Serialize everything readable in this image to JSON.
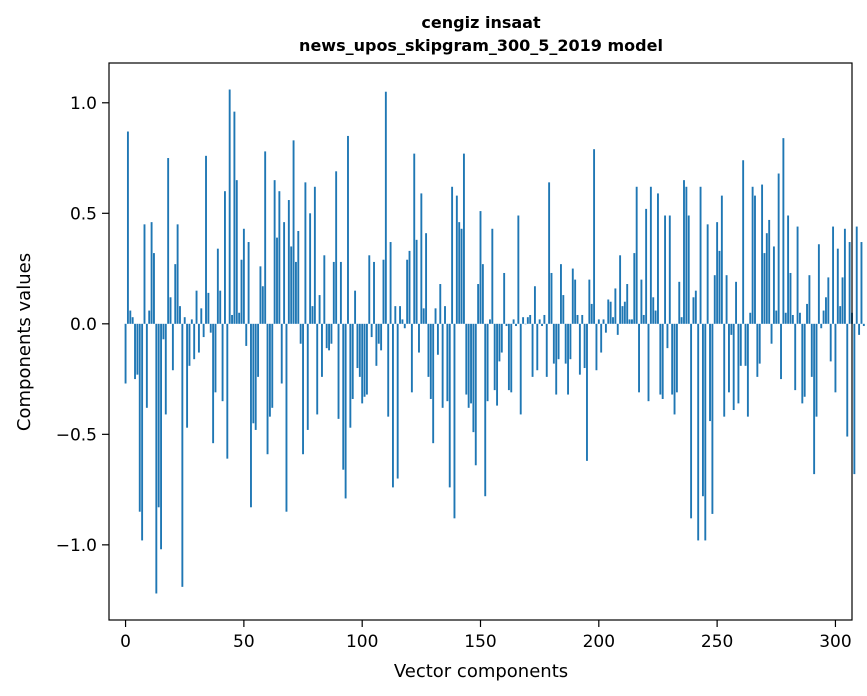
{
  "chart_data": {
    "type": "bar",
    "title": "cengiz insaat",
    "subtitle": "news_upos_skipgram_300_5_2019 model",
    "xlabel": "Vector components",
    "ylabel": "Components values",
    "xlim": [
      -7,
      307
    ],
    "ylim": [
      -1.34,
      1.18
    ],
    "xticks": [
      0,
      50,
      100,
      150,
      200,
      250,
      300
    ],
    "xtick_labels": [
      "0",
      "50",
      "100",
      "150",
      "200",
      "250",
      "300"
    ],
    "yticks": [
      -1.0,
      -0.5,
      0.0,
      0.5,
      1.0
    ],
    "ytick_labels": [
      "−1.0",
      "−0.5",
      "0.0",
      "0.5",
      "1.0"
    ],
    "grid": false,
    "bar_color": "#1f77b4",
    "values": [
      -0.27,
      0.87,
      0.06,
      0.03,
      -0.25,
      -0.23,
      -0.85,
      -0.98,
      0.45,
      -0.38,
      0.06,
      0.46,
      0.32,
      -1.22,
      -0.83,
      -1.02,
      -0.07,
      -0.41,
      0.75,
      0.12,
      -0.21,
      0.27,
      0.45,
      0.08,
      -1.19,
      0.03,
      -0.47,
      -0.19,
      0.02,
      -0.16,
      0.15,
      -0.13,
      0.07,
      -0.06,
      0.76,
      0.14,
      -0.04,
      -0.54,
      -0.31,
      0.34,
      0.15,
      -0.35,
      0.6,
      -0.61,
      1.06,
      0.04,
      0.96,
      0.65,
      0.05,
      0.29,
      0.43,
      -0.1,
      0.37,
      -0.83,
      -0.45,
      -0.48,
      -0.24,
      0.26,
      0.17,
      0.78,
      -0.59,
      -0.42,
      -0.38,
      0.65,
      0.39,
      0.6,
      -0.27,
      0.46,
      -0.85,
      0.56,
      0.35,
      0.83,
      0.28,
      0.42,
      -0.09,
      -0.59,
      0.64,
      -0.48,
      0.5,
      0.08,
      0.62,
      -0.41,
      0.13,
      -0.24,
      0.31,
      -0.11,
      -0.12,
      -0.09,
      0.28,
      0.69,
      -0.43,
      0.28,
      -0.66,
      -0.79,
      0.85,
      -0.47,
      -0.34,
      0.15,
      -0.2,
      -0.24,
      -0.36,
      -0.33,
      -0.32,
      0.31,
      -0.06,
      0.28,
      -0.19,
      -0.09,
      -0.12,
      0.29,
      1.05,
      -0.42,
      0.37,
      -0.74,
      0.08,
      -0.7,
      0.08,
      0.02,
      -0.02,
      0.29,
      0.33,
      -0.31,
      0.77,
      0.38,
      -0.13,
      0.59,
      0.07,
      0.41,
      -0.24,
      -0.34,
      -0.54,
      0.07,
      -0.14,
      0.18,
      -0.38,
      0.08,
      -0.35,
      -0.74,
      0.62,
      -0.88,
      0.58,
      0.46,
      0.43,
      0.77,
      -0.32,
      -0.38,
      -0.36,
      -0.49,
      -0.64,
      0.18,
      0.51,
      0.27,
      -0.78,
      -0.35,
      0.02,
      0.43,
      -0.3,
      -0.37,
      -0.17,
      -0.13,
      0.23,
      -0.01,
      -0.3,
      -0.31,
      0.02,
      -0.01,
      0.49,
      -0.41,
      0.03,
      -0.0,
      0.03,
      0.04,
      -0.24,
      0.17,
      -0.21,
      0.02,
      -0.01,
      0.04,
      -0.24,
      0.64,
      0.23,
      -0.18,
      -0.32,
      -0.16,
      0.27,
      0.13,
      -0.18,
      -0.32,
      -0.16,
      0.25,
      0.2,
      0.04,
      -0.23,
      0.04,
      -0.2,
      -0.62,
      0.2,
      0.09,
      0.79,
      -0.21,
      0.02,
      -0.13,
      0.02,
      -0.04,
      0.11,
      0.1,
      0.03,
      0.16,
      -0.05,
      0.31,
      0.08,
      0.1,
      0.18,
      0.02,
      0.02,
      0.32,
      0.62,
      -0.31,
      0.2,
      0.04,
      0.52,
      -0.35,
      0.62,
      0.12,
      0.06,
      0.59,
      -0.32,
      -0.34,
      0.49,
      -0.11,
      0.49,
      -0.32,
      -0.41,
      -0.31,
      0.19,
      0.03,
      0.65,
      0.62,
      0.49,
      -0.88,
      0.12,
      0.15,
      -0.98,
      0.62,
      -0.78,
      -0.98,
      0.45,
      -0.44,
      -0.86,
      0.22,
      0.46,
      0.33,
      0.58,
      -0.42,
      0.22,
      -0.31,
      -0.05,
      -0.39,
      0.19,
      -0.36,
      -0.19,
      0.74,
      -0.19,
      -0.42,
      0.05,
      0.62,
      0.58,
      -0.24,
      -0.18,
      0.63,
      0.32,
      0.41,
      0.47,
      -0.09,
      0.35,
      0.06,
      0.68,
      -0.25,
      0.84,
      0.05,
      0.49,
      0.23,
      0.04,
      -0.3,
      0.44,
      0.05,
      -0.36,
      -0.33,
      0.09,
      0.22,
      -0.24,
      -0.68,
      -0.42,
      0.36,
      -0.02,
      0.06,
      0.12,
      0.21,
      -0.17,
      0.44,
      -0.31,
      0.34,
      0.08,
      0.21,
      0.43,
      -0.51,
      0.37,
      0.05,
      -0.68,
      0.44,
      -0.05,
      0.37,
      -0.01
    ]
  }
}
